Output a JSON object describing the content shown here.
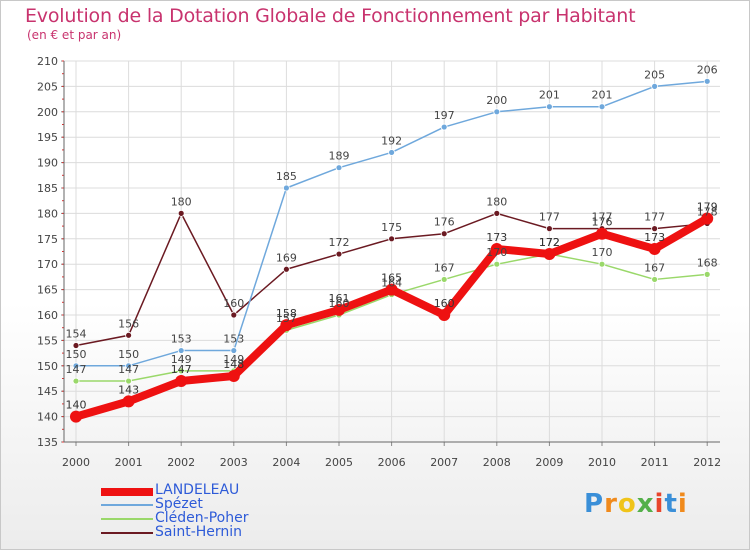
{
  "chart_data": {
    "type": "line",
    "title": "Evolution de la Dotation Globale de Fonctionnement par Habitant",
    "subtitle": "(en € et par an)",
    "categories": [
      "2000",
      "2001",
      "2002",
      "2003",
      "2004",
      "2005",
      "2006",
      "2007",
      "2008",
      "2009",
      "2010",
      "2011",
      "2012"
    ],
    "ylim": [
      135,
      210
    ],
    "yticks": [
      135,
      140,
      145,
      150,
      155,
      160,
      165,
      170,
      175,
      180,
      185,
      190,
      195,
      200,
      205,
      210
    ],
    "series": [
      {
        "name": "LANDELEAU",
        "color": "#ee1111",
        "values": [
          140,
          143,
          147,
          148,
          158,
          161,
          165,
          160,
          173,
          172,
          176,
          173,
          179
        ]
      },
      {
        "name": "Spézet",
        "color": "#6fa8dc",
        "values": [
          150,
          150,
          153,
          153,
          185,
          189,
          192,
          197,
          200,
          201,
          201,
          205,
          206
        ]
      },
      {
        "name": "Cléden-Poher",
        "color": "#9ad86a",
        "values": [
          147,
          147,
          149,
          149,
          157,
          160,
          164,
          167,
          170,
          172,
          170,
          167,
          168
        ]
      },
      {
        "name": "Saint-Hernin",
        "color": "#6b1a22",
        "values": [
          154,
          156,
          180,
          160,
          169,
          172,
          175,
          176,
          180,
          177,
          177,
          177,
          178
        ]
      }
    ]
  },
  "logo": {
    "letters": [
      "P",
      "r",
      "o",
      "x",
      "i",
      "t",
      "i"
    ]
  }
}
